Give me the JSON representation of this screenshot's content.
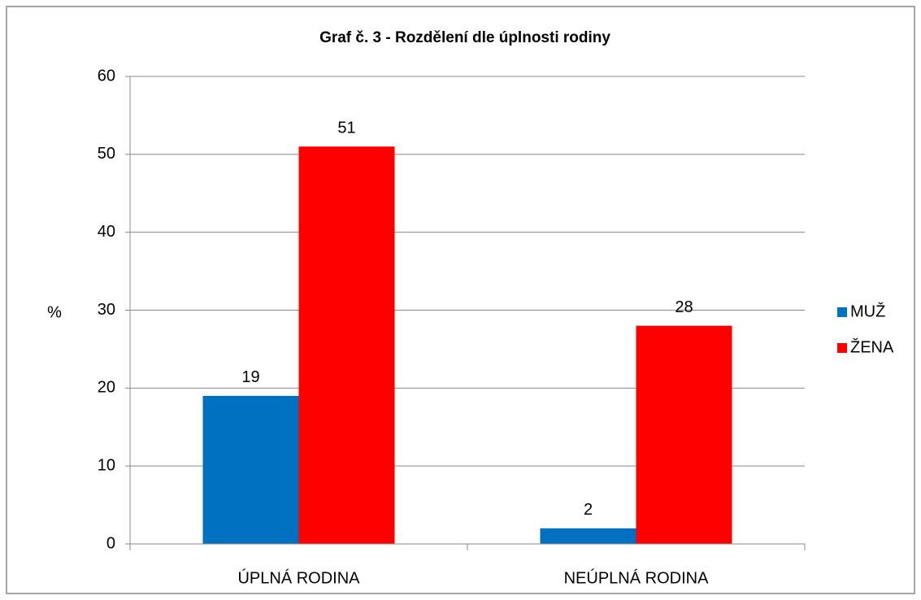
{
  "chart_data": {
    "type": "bar",
    "title": "Graf č. 3 - Rozdělení dle úplnosti rodiny",
    "y_label": "%",
    "categories": [
      "ÚPLNÁ RODINA",
      "NEÚPLNÁ RODINA"
    ],
    "series": [
      {
        "name": "MUŽ",
        "color": "#0070c0",
        "values": [
          19,
          2
        ]
      },
      {
        "name": "ŽENA",
        "color": "#ff0000",
        "values": [
          51,
          28
        ]
      }
    ],
    "ylim": [
      0,
      60
    ],
    "yticks": [
      0,
      10,
      20,
      30,
      40,
      50,
      60
    ],
    "grid": true,
    "legend": "right"
  }
}
